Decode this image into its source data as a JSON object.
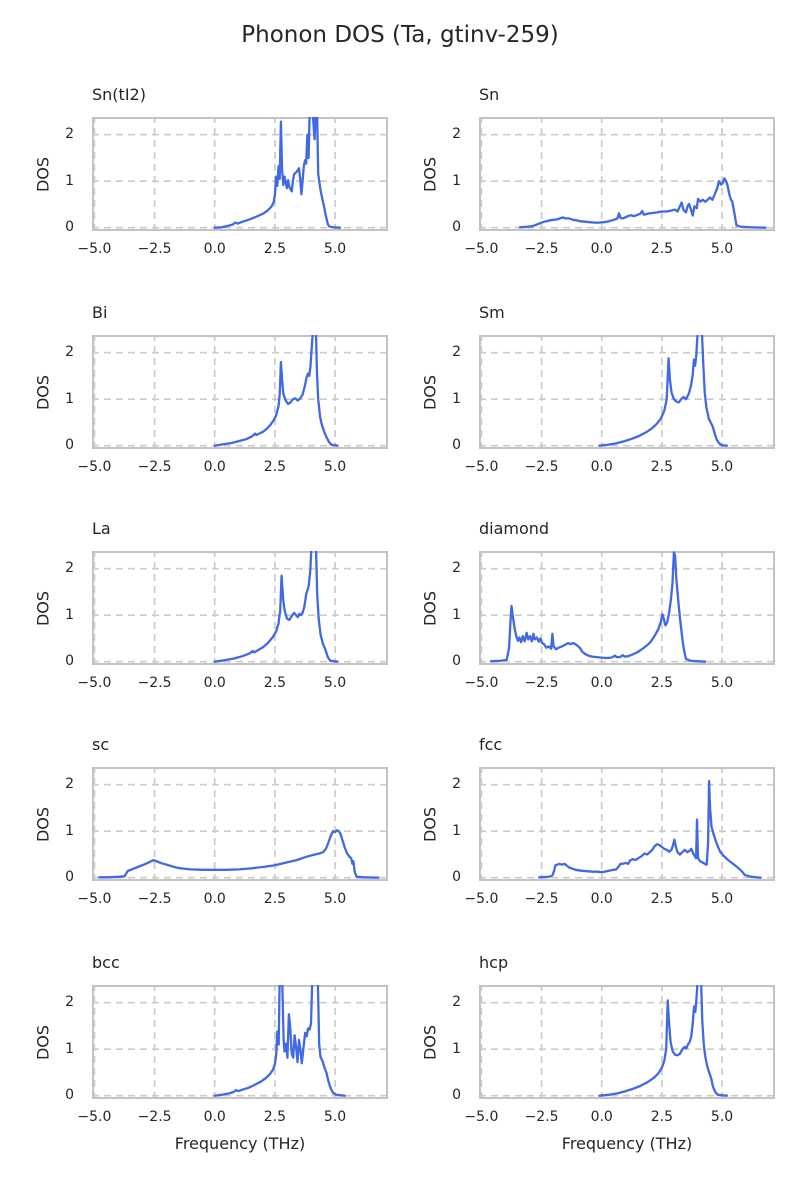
{
  "figure": {
    "suptitle": "Phonon DOS (Ta, gtinv-259)"
  },
  "colors": {
    "line": "#4169e1",
    "grid": "#cbcbcb",
    "spine": "#c3c3c3",
    "text": "#262626",
    "background": "#ffffff"
  },
  "axes": {
    "xlabel": "Frequency (THz)",
    "ylabel": "DOS",
    "xlim": [
      -5.1,
      7.2
    ],
    "ylim": [
      -0.07,
      2.38
    ],
    "x_tick_values": [
      -5,
      -2.5,
      0,
      2.5,
      5
    ],
    "x_tick_labels": [
      "−5.0",
      "−2.5",
      "0.0",
      "2.5",
      "5.0"
    ],
    "y_tick_values": [
      0,
      1,
      2
    ],
    "y_tick_labels": [
      "0",
      "1",
      "2"
    ],
    "grid": "dashed"
  },
  "chart_data": [
    {
      "type": "line",
      "title": "Sn(tI2)",
      "xlabel": "",
      "x": [
        0.0,
        0.3,
        0.55,
        0.75,
        0.85,
        0.95,
        1.1,
        1.4,
        1.7,
        2.0,
        2.2,
        2.35,
        2.45,
        2.5,
        2.55,
        2.6,
        2.65,
        2.7,
        2.75,
        2.8,
        2.85,
        2.9,
        3.0,
        3.05,
        3.1,
        3.2,
        3.25,
        3.3,
        3.4,
        3.5,
        3.55,
        3.6,
        3.65,
        3.7,
        3.75,
        3.8,
        3.85,
        3.9,
        3.95,
        4.05,
        4.15,
        4.2,
        4.25,
        4.3,
        4.4,
        4.5,
        4.55,
        4.6,
        4.7,
        4.75,
        4.9,
        5.2
      ],
      "y": [
        0.0,
        0.01,
        0.04,
        0.07,
        0.11,
        0.09,
        0.12,
        0.17,
        0.23,
        0.3,
        0.37,
        0.45,
        0.55,
        0.7,
        1.1,
        0.9,
        1.32,
        1.05,
        2.28,
        1.25,
        0.92,
        1.1,
        0.85,
        1.02,
        0.88,
        0.78,
        1.0,
        1.15,
        1.2,
        1.28,
        1.05,
        0.72,
        1.0,
        1.32,
        1.45,
        1.38,
        2.0,
        1.5,
        2.6,
        2.6,
        1.9,
        2.6,
        2.6,
        1.15,
        0.8,
        0.55,
        0.45,
        0.3,
        0.08,
        0.03,
        0.01,
        0.0
      ]
    },
    {
      "type": "line",
      "title": "Sn",
      "xlabel": "",
      "x": [
        -3.4,
        -3.1,
        -2.9,
        -2.75,
        -2.6,
        -2.45,
        -2.3,
        -2.15,
        -2.0,
        -1.85,
        -1.7,
        -1.6,
        -1.5,
        -1.35,
        -1.2,
        -1.05,
        -0.9,
        -0.7,
        -0.5,
        -0.3,
        -0.1,
        0.1,
        0.3,
        0.5,
        0.65,
        0.72,
        0.78,
        0.9,
        1.0,
        1.1,
        1.2,
        1.35,
        1.5,
        1.6,
        1.68,
        1.75,
        1.9,
        2.0,
        2.15,
        2.3,
        2.5,
        2.7,
        2.9,
        3.05,
        3.15,
        3.25,
        3.32,
        3.4,
        3.5,
        3.57,
        3.63,
        3.7,
        3.78,
        3.85,
        3.95,
        4.0,
        4.1,
        4.2,
        4.3,
        4.4,
        4.5,
        4.6,
        4.7,
        4.8,
        4.87,
        4.95,
        5.02,
        5.1,
        5.17,
        5.22,
        5.3,
        5.37,
        5.42,
        5.5,
        5.6,
        5.8,
        6.2,
        6.8
      ],
      "y": [
        0.01,
        0.02,
        0.03,
        0.06,
        0.09,
        0.12,
        0.14,
        0.16,
        0.17,
        0.18,
        0.21,
        0.22,
        0.2,
        0.2,
        0.17,
        0.16,
        0.14,
        0.13,
        0.12,
        0.11,
        0.11,
        0.12,
        0.14,
        0.17,
        0.2,
        0.31,
        0.21,
        0.2,
        0.23,
        0.25,
        0.27,
        0.25,
        0.28,
        0.3,
        0.36,
        0.28,
        0.3,
        0.31,
        0.32,
        0.33,
        0.35,
        0.35,
        0.37,
        0.39,
        0.35,
        0.46,
        0.54,
        0.38,
        0.33,
        0.46,
        0.51,
        0.4,
        0.26,
        0.46,
        0.42,
        0.62,
        0.56,
        0.6,
        0.56,
        0.6,
        0.65,
        0.6,
        0.72,
        0.85,
        1.0,
        0.93,
        0.95,
        1.06,
        1.0,
        0.92,
        0.72,
        0.6,
        0.57,
        0.35,
        0.05,
        0.02,
        0.01,
        0.0
      ]
    },
    {
      "type": "line",
      "title": "Bi",
      "xlabel": "",
      "x": [
        0.0,
        0.35,
        0.7,
        1.0,
        1.3,
        1.55,
        1.68,
        1.73,
        1.85,
        2.0,
        2.15,
        2.3,
        2.45,
        2.55,
        2.65,
        2.7,
        2.75,
        2.8,
        2.85,
        2.95,
        3.05,
        3.15,
        3.25,
        3.35,
        3.45,
        3.55,
        3.65,
        3.75,
        3.82,
        3.88,
        3.93,
        3.98,
        4.03,
        4.1,
        4.2,
        4.25,
        4.3,
        4.38,
        4.45,
        4.55,
        4.65,
        4.75,
        4.85,
        5.1
      ],
      "y": [
        0.0,
        0.03,
        0.06,
        0.1,
        0.14,
        0.2,
        0.26,
        0.23,
        0.26,
        0.3,
        0.36,
        0.44,
        0.55,
        0.65,
        0.85,
        1.1,
        1.8,
        1.42,
        1.12,
        0.97,
        0.9,
        0.93,
        1.0,
        1.02,
        0.97,
        1.02,
        1.1,
        1.3,
        1.48,
        1.55,
        1.5,
        1.72,
        2.1,
        2.6,
        2.6,
        1.55,
        1.0,
        0.62,
        0.45,
        0.3,
        0.18,
        0.08,
        0.02,
        0.0
      ]
    },
    {
      "type": "line",
      "title": "Sm",
      "xlabel": "",
      "x": [
        -0.1,
        0.25,
        0.6,
        0.95,
        1.25,
        1.55,
        1.85,
        2.1,
        2.3,
        2.45,
        2.6,
        2.7,
        2.78,
        2.83,
        2.9,
        3.0,
        3.1,
        3.2,
        3.3,
        3.4,
        3.5,
        3.55,
        3.62,
        3.7,
        3.78,
        3.83,
        3.88,
        3.93,
        3.98,
        4.05,
        4.15,
        4.22,
        4.28,
        4.35,
        4.45,
        4.55,
        4.62,
        4.68,
        4.78,
        4.88,
        5.0,
        5.2
      ],
      "y": [
        0.0,
        0.02,
        0.05,
        0.1,
        0.15,
        0.21,
        0.29,
        0.38,
        0.48,
        0.58,
        0.75,
        1.0,
        1.88,
        1.45,
        1.15,
        1.0,
        0.95,
        0.93,
        1.0,
        1.05,
        1.0,
        1.05,
        1.12,
        1.27,
        1.52,
        1.85,
        1.72,
        1.95,
        2.38,
        2.6,
        2.6,
        1.75,
        1.15,
        0.82,
        0.58,
        0.48,
        0.4,
        0.28,
        0.13,
        0.05,
        0.01,
        0.0
      ]
    },
    {
      "type": "line",
      "title": "La",
      "xlabel": "",
      "x": [
        0.0,
        0.4,
        0.8,
        1.15,
        1.45,
        1.58,
        1.64,
        1.8,
        2.0,
        2.2,
        2.4,
        2.55,
        2.65,
        2.72,
        2.78,
        2.84,
        2.9,
        3.0,
        3.1,
        3.2,
        3.3,
        3.38,
        3.45,
        3.52,
        3.58,
        3.65,
        3.72,
        3.8,
        3.9,
        3.97,
        4.03,
        4.1,
        4.2,
        4.26,
        4.32,
        4.4,
        4.5,
        4.6,
        4.7,
        4.8,
        5.1
      ],
      "y": [
        0.0,
        0.03,
        0.07,
        0.12,
        0.18,
        0.23,
        0.2,
        0.25,
        0.31,
        0.4,
        0.52,
        0.65,
        0.82,
        1.1,
        1.85,
        1.35,
        1.12,
        0.93,
        0.9,
        0.98,
        1.05,
        1.0,
        0.96,
        1.03,
        1.0,
        1.05,
        1.18,
        1.45,
        1.62,
        1.95,
        2.6,
        2.6,
        2.6,
        1.45,
        0.92,
        0.58,
        0.38,
        0.26,
        0.1,
        0.02,
        0.0
      ]
    },
    {
      "type": "line",
      "title": "diamond",
      "xlabel": "",
      "x": [
        -4.6,
        -4.2,
        -3.95,
        -3.85,
        -3.8,
        -3.75,
        -3.7,
        -3.62,
        -3.55,
        -3.48,
        -3.42,
        -3.35,
        -3.28,
        -3.2,
        -3.12,
        -3.05,
        -2.98,
        -2.9,
        -2.84,
        -2.78,
        -2.7,
        -2.62,
        -2.55,
        -2.48,
        -2.4,
        -2.3,
        -2.2,
        -2.1,
        -2.05,
        -2.0,
        -1.9,
        -1.8,
        -1.65,
        -1.5,
        -1.4,
        -1.3,
        -1.2,
        -1.1,
        -1.0,
        -0.9,
        -0.8,
        -0.7,
        -0.55,
        -0.4,
        -0.2,
        0.0,
        0.2,
        0.4,
        0.55,
        0.62,
        0.75,
        0.88,
        0.95,
        1.1,
        1.3,
        1.5,
        1.7,
        1.9,
        2.05,
        2.2,
        2.35,
        2.45,
        2.52,
        2.58,
        2.65,
        2.72,
        2.8,
        2.88,
        2.94,
        3.0,
        3.05,
        3.1,
        3.18,
        3.25,
        3.35,
        3.42,
        3.5,
        3.7,
        4.0,
        4.3
      ],
      "y": [
        0.01,
        0.02,
        0.04,
        0.3,
        0.8,
        1.2,
        1.0,
        0.72,
        0.55,
        0.45,
        0.52,
        0.42,
        0.55,
        0.44,
        0.62,
        0.48,
        0.55,
        0.44,
        0.6,
        0.48,
        0.52,
        0.43,
        0.5,
        0.4,
        0.38,
        0.3,
        0.33,
        0.28,
        0.6,
        0.33,
        0.27,
        0.3,
        0.33,
        0.37,
        0.4,
        0.38,
        0.4,
        0.38,
        0.34,
        0.29,
        0.21,
        0.17,
        0.13,
        0.11,
        0.1,
        0.09,
        0.08,
        0.09,
        0.13,
        0.1,
        0.1,
        0.14,
        0.11,
        0.12,
        0.16,
        0.21,
        0.28,
        0.36,
        0.44,
        0.56,
        0.7,
        0.85,
        1.02,
        0.92,
        0.78,
        0.85,
        1.05,
        1.35,
        1.7,
        2.35,
        2.28,
        1.8,
        1.3,
        0.95,
        0.5,
        0.25,
        0.06,
        0.02,
        0.01,
        0.0
      ]
    },
    {
      "type": "line",
      "title": "sc",
      "xlabel": "",
      "x": [
        -4.8,
        -4.4,
        -4.0,
        -3.75,
        -3.62,
        -3.55,
        -3.45,
        -3.3,
        -3.1,
        -2.9,
        -2.7,
        -2.55,
        -2.4,
        -2.2,
        -2.0,
        -1.8,
        -1.6,
        -1.4,
        -1.2,
        -1.0,
        -0.5,
        0.0,
        0.5,
        1.0,
        1.5,
        2.0,
        2.5,
        3.0,
        3.4,
        3.8,
        4.1,
        4.35,
        4.5,
        4.62,
        4.72,
        4.82,
        4.92,
        5.0,
        5.08,
        5.15,
        5.22,
        5.3,
        5.4,
        5.5,
        5.6,
        5.67,
        5.72,
        5.76,
        5.82,
        5.9,
        6.2,
        6.8
      ],
      "y": [
        0.01,
        0.01,
        0.02,
        0.03,
        0.14,
        0.16,
        0.18,
        0.21,
        0.25,
        0.29,
        0.34,
        0.38,
        0.35,
        0.31,
        0.28,
        0.25,
        0.22,
        0.2,
        0.19,
        0.18,
        0.17,
        0.17,
        0.17,
        0.18,
        0.2,
        0.23,
        0.27,
        0.33,
        0.38,
        0.45,
        0.49,
        0.52,
        0.55,
        0.62,
        0.75,
        0.9,
        1.0,
        0.98,
        1.02,
        1.0,
        0.95,
        0.82,
        0.65,
        0.52,
        0.45,
        0.42,
        0.3,
        0.36,
        0.12,
        0.02,
        0.01,
        0.0
      ]
    },
    {
      "type": "line",
      "title": "fcc",
      "xlabel": "",
      "x": [
        -2.6,
        -2.2,
        -2.05,
        -1.98,
        -1.92,
        -1.85,
        -1.75,
        -1.65,
        -1.55,
        -1.45,
        -1.35,
        -1.25,
        -1.1,
        -0.95,
        -0.8,
        -0.6,
        -0.4,
        -0.2,
        0.0,
        0.2,
        0.4,
        0.6,
        0.7,
        0.78,
        0.88,
        1.0,
        1.1,
        1.18,
        1.28,
        1.4,
        1.52,
        1.65,
        1.78,
        1.88,
        2.0,
        2.1,
        2.2,
        2.3,
        2.4,
        2.5,
        2.6,
        2.7,
        2.8,
        2.9,
        2.96,
        3.02,
        3.08,
        3.15,
        3.25,
        3.35,
        3.45,
        3.55,
        3.65,
        3.72,
        3.8,
        3.87,
        3.92,
        3.96,
        4.0,
        4.08,
        4.18,
        4.28,
        4.36,
        4.42,
        4.46,
        4.5,
        4.56,
        4.64,
        4.72,
        4.82,
        4.92,
        5.05,
        5.2,
        5.35,
        5.5,
        5.65,
        5.8,
        5.95,
        6.2,
        6.6
      ],
      "y": [
        0.01,
        0.02,
        0.05,
        0.15,
        0.27,
        0.28,
        0.3,
        0.28,
        0.3,
        0.26,
        0.22,
        0.2,
        0.17,
        0.16,
        0.15,
        0.14,
        0.13,
        0.13,
        0.12,
        0.14,
        0.16,
        0.18,
        0.24,
        0.3,
        0.3,
        0.32,
        0.3,
        0.37,
        0.4,
        0.38,
        0.42,
        0.46,
        0.52,
        0.5,
        0.55,
        0.6,
        0.68,
        0.72,
        0.7,
        0.66,
        0.62,
        0.6,
        0.56,
        0.6,
        0.7,
        0.82,
        0.66,
        0.55,
        0.5,
        0.55,
        0.6,
        0.55,
        0.58,
        0.62,
        0.52,
        0.46,
        0.42,
        1.25,
        0.42,
        0.36,
        0.33,
        0.3,
        0.28,
        0.75,
        2.08,
        1.52,
        1.1,
        0.95,
        0.82,
        0.68,
        0.56,
        0.48,
        0.4,
        0.34,
        0.28,
        0.22,
        0.15,
        0.06,
        0.02,
        0.0
      ]
    },
    {
      "type": "line",
      "title": "bcc",
      "xlabel": "Frequency (THz)",
      "x": [
        0.0,
        0.3,
        0.6,
        0.78,
        0.88,
        0.98,
        1.15,
        1.4,
        1.65,
        1.9,
        2.1,
        2.3,
        2.42,
        2.5,
        2.56,
        2.6,
        2.66,
        2.7,
        2.8,
        2.86,
        2.9,
        2.96,
        3.02,
        3.08,
        3.14,
        3.2,
        3.26,
        3.32,
        3.38,
        3.44,
        3.5,
        3.56,
        3.62,
        3.7,
        3.76,
        3.82,
        3.88,
        3.94,
        4.0,
        4.06,
        4.28,
        4.34,
        4.4,
        4.48,
        4.56,
        4.64,
        4.72,
        4.82,
        4.92,
        5.05,
        5.4
      ],
      "y": [
        0.0,
        0.02,
        0.05,
        0.08,
        0.12,
        0.1,
        0.13,
        0.17,
        0.23,
        0.3,
        0.37,
        0.47,
        0.56,
        0.68,
        0.9,
        1.38,
        1.1,
        2.6,
        2.6,
        1.2,
        0.95,
        1.12,
        0.82,
        1.75,
        1.45,
        0.9,
        0.82,
        1.3,
        1.05,
        0.72,
        1.2,
        0.98,
        0.7,
        1.1,
        1.35,
        1.28,
        1.45,
        1.42,
        1.55,
        2.6,
        2.6,
        1.1,
        0.82,
        0.75,
        0.6,
        0.5,
        0.32,
        0.16,
        0.06,
        0.02,
        0.0
      ]
    },
    {
      "type": "line",
      "title": "hcp",
      "xlabel": "Frequency (THz)",
      "x": [
        -0.1,
        0.3,
        0.65,
        1.0,
        1.3,
        1.6,
        1.9,
        2.15,
        2.35,
        2.5,
        2.6,
        2.68,
        2.74,
        2.8,
        2.86,
        2.95,
        3.05,
        3.15,
        3.25,
        3.35,
        3.45,
        3.52,
        3.58,
        3.65,
        3.72,
        3.78,
        3.84,
        3.89,
        3.94,
        4.0,
        4.12,
        4.18,
        4.24,
        4.3,
        4.4,
        4.5,
        4.56,
        4.62,
        4.72,
        4.82,
        5.0,
        5.2
      ],
      "y": [
        0.0,
        0.02,
        0.05,
        0.1,
        0.15,
        0.21,
        0.29,
        0.38,
        0.48,
        0.6,
        0.75,
        1.0,
        2.05,
        1.55,
        1.15,
        0.95,
        0.88,
        0.87,
        0.9,
        1.0,
        1.05,
        1.02,
        1.1,
        1.15,
        1.28,
        1.55,
        1.92,
        1.8,
        2.1,
        2.6,
        2.6,
        1.6,
        1.1,
        0.85,
        0.6,
        0.45,
        0.35,
        0.2,
        0.08,
        0.02,
        0.01,
        0.0
      ]
    }
  ]
}
